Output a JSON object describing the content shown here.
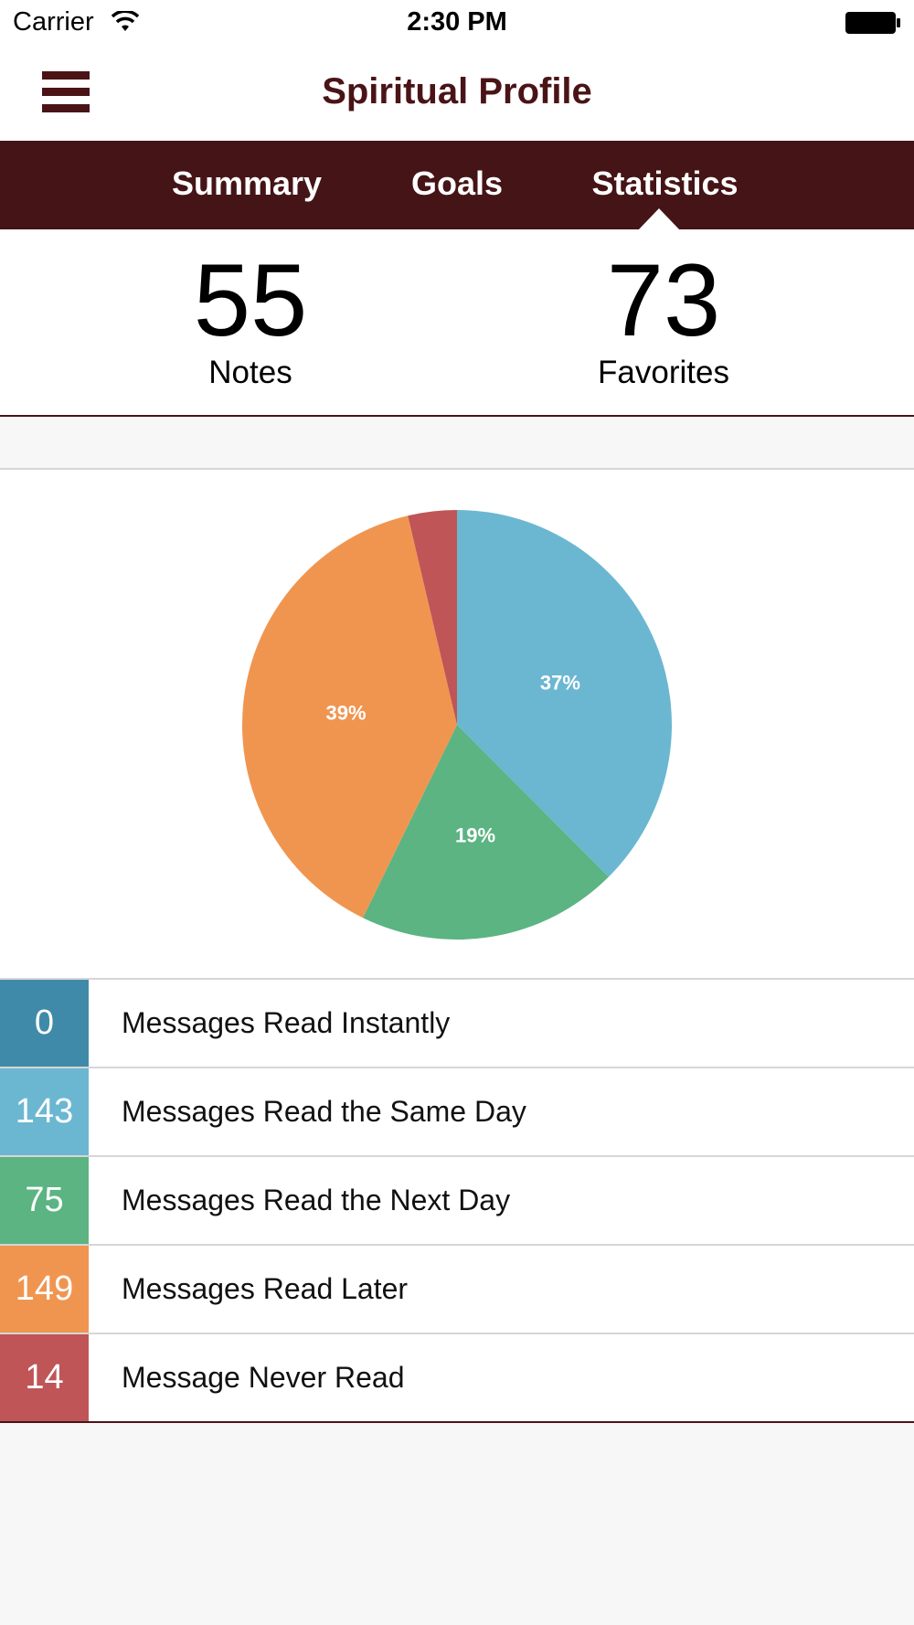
{
  "status_bar": {
    "carrier": "Carrier",
    "time": "2:30 PM",
    "icons": [
      "wifi-icon",
      "battery-icon"
    ]
  },
  "nav": {
    "title": "Spiritual Profile",
    "menu_icon": "hamburger-menu-icon"
  },
  "tabs": [
    {
      "label": "Summary",
      "active": false
    },
    {
      "label": "Goals",
      "active": false
    },
    {
      "label": "Statistics",
      "active": true
    }
  ],
  "stats": {
    "notes": {
      "value": "55",
      "label": "Notes"
    },
    "favorites": {
      "value": "73",
      "label": "Favorites"
    }
  },
  "chart_data": {
    "type": "pie",
    "slices": [
      {
        "label": "Messages Read Instantly",
        "value": 0,
        "percent": "",
        "color": "#3f8aa8"
      },
      {
        "label": "Messages Read the Same Day",
        "value": 143,
        "percent": "37%",
        "color": "#6bb7d1"
      },
      {
        "label": "Messages Read the Next Day",
        "value": 75,
        "percent": "19%",
        "color": "#5bb482"
      },
      {
        "label": "Messages Read Later",
        "value": 149,
        "percent": "39%",
        "color": "#f09550"
      },
      {
        "label": "Message Never Read",
        "value": 14,
        "percent": "",
        "color": "#bf5557"
      }
    ]
  },
  "legend": [
    {
      "count": "0",
      "label": "Messages Read Instantly",
      "color": "#3f8aa8"
    },
    {
      "count": "143",
      "label": "Messages Read the Same Day",
      "color": "#6bb7d1"
    },
    {
      "count": "75",
      "label": "Messages Read the Next Day",
      "color": "#5bb482"
    },
    {
      "count": "149",
      "label": "Messages Read Later",
      "color": "#f09550"
    },
    {
      "count": "14",
      "label": "Message Never Read",
      "color": "#bf5557"
    }
  ]
}
